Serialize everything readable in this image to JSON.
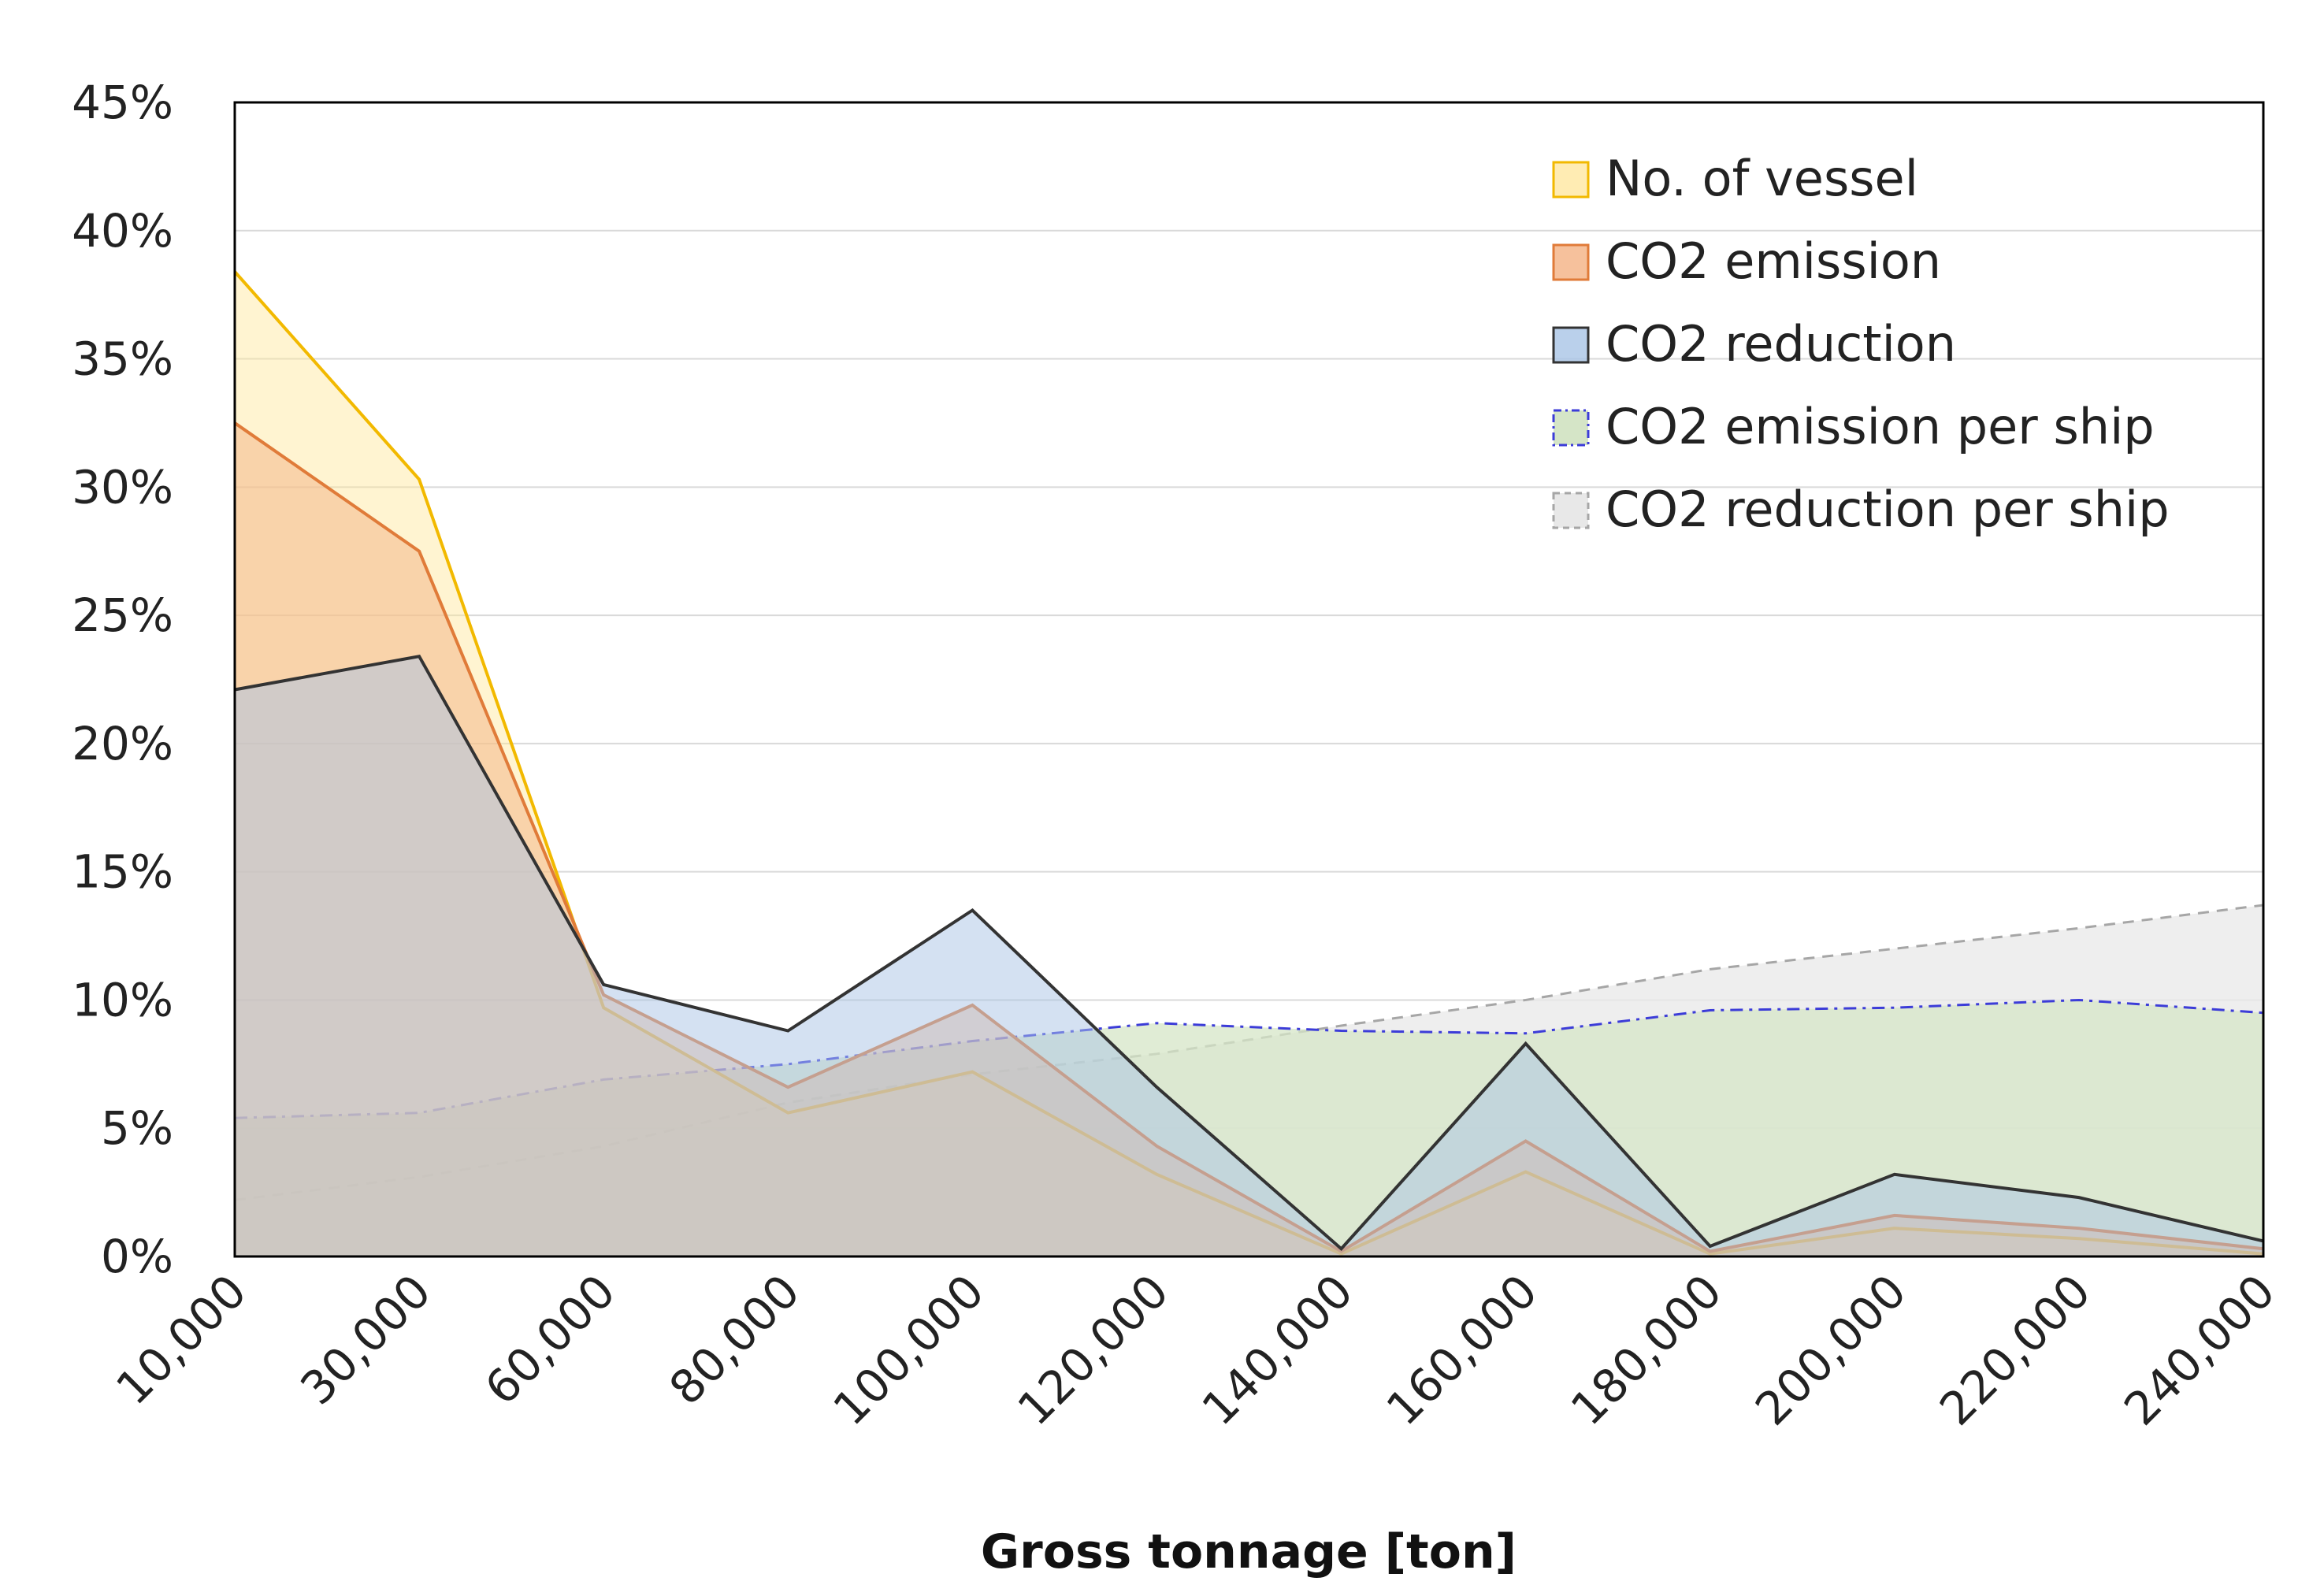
{
  "chart_data": {
    "type": "area",
    "title": "",
    "xlabel": "Gross tonnage [ton]",
    "ylabel": "",
    "categories": [
      "10,000",
      "30,000",
      "60,000",
      "80,000",
      "100,000",
      "120,000",
      "140,000",
      "160,000",
      "180,000",
      "200,000",
      "220,000",
      "240,000"
    ],
    "yticks": [
      "0%",
      "5%",
      "10%",
      "15%",
      "20%",
      "25%",
      "30%",
      "35%",
      "40%",
      "45%"
    ],
    "ylim": [
      0,
      45
    ],
    "grid": "horizontal",
    "legend_position": "top-right",
    "series": [
      {
        "name": "CO2 reduction per ship",
        "values": [
          2.2,
          3.1,
          4.3,
          6.0,
          7.1,
          7.9,
          9.0,
          10.0,
          11.2,
          12.0,
          12.8,
          13.7
        ],
        "fill": "#e8e8e8",
        "stroke": "#a6a6a6",
        "dash": "dash",
        "fill_opacity": 0.75
      },
      {
        "name": "CO2 emission per ship",
        "values": [
          5.4,
          5.6,
          6.9,
          7.5,
          8.4,
          9.1,
          8.8,
          8.7,
          9.6,
          9.7,
          10.0,
          9.5
        ],
        "fill": "#d5e5c7",
        "stroke": "#3c3cd8",
        "dash": "dashdot",
        "fill_opacity": 0.75
      },
      {
        "name": "No. of vessel",
        "values": [
          38.4,
          30.3,
          9.7,
          5.6,
          7.2,
          3.2,
          0.1,
          3.3,
          0.1,
          1.1,
          0.7,
          0.1
        ],
        "fill": "#ffe699",
        "stroke": "#f2b900",
        "dash": "solid",
        "fill_opacity": 0.45
      },
      {
        "name": "CO2 emission",
        "values": [
          32.5,
          27.5,
          10.2,
          6.6,
          9.8,
          4.3,
          0.2,
          4.5,
          0.2,
          1.6,
          1.1,
          0.3
        ],
        "fill": "#f4b183",
        "stroke": "#e07b39",
        "dash": "solid",
        "fill_opacity": 0.5
      },
      {
        "name": "CO2 reduction",
        "values": [
          22.1,
          23.4,
          10.6,
          8.8,
          13.5,
          6.6,
          0.3,
          8.3,
          0.4,
          3.2,
          2.3,
          0.6
        ],
        "fill": "#a9c4e6",
        "stroke": "#333333",
        "dash": "solid",
        "fill_opacity": 0.5
      }
    ],
    "legend_order": [
      "No. of vessel",
      "CO2 emission",
      "CO2 reduction",
      "CO2 emission per ship",
      "CO2 reduction per ship"
    ]
  }
}
